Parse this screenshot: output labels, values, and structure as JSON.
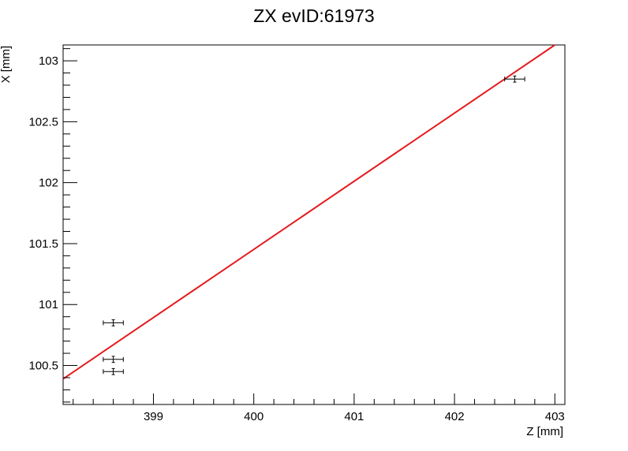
{
  "chart_data": {
    "type": "scatter",
    "title": "ZX evID:61973",
    "xlabel": "Z [mm]",
    "ylabel": "X [mm]",
    "xlim": [
      398.1,
      403.1
    ],
    "ylim": [
      100.18,
      103.13
    ],
    "xticks": [
      399,
      400,
      401,
      402,
      403
    ],
    "xtick_labels": [
      "399",
      "400",
      "401",
      "402",
      "403"
    ],
    "yticks": [
      100.5,
      101,
      101.5,
      102,
      102.5,
      103
    ],
    "ytick_labels": [
      "100.5",
      "101",
      "101.5",
      "102",
      "102.5",
      "103"
    ],
    "grid": false,
    "points": [
      {
        "x": 398.6,
        "y": 100.85,
        "xerr": 0.1,
        "yerr": 0.025
      },
      {
        "x": 398.6,
        "y": 100.55,
        "xerr": 0.1,
        "yerr": 0.025
      },
      {
        "x": 398.6,
        "y": 100.45,
        "xerr": 0.1,
        "yerr": 0.025
      },
      {
        "x": 402.6,
        "y": 102.85,
        "xerr": 0.1,
        "yerr": 0.025
      }
    ],
    "fit_line": {
      "x": [
        398.1,
        403.0
      ],
      "y": [
        100.39,
        103.13
      ],
      "color": "#e41a1c"
    },
    "colors": {
      "points": "#000000",
      "fit": "#e41a1c",
      "frame": "#000000"
    }
  }
}
